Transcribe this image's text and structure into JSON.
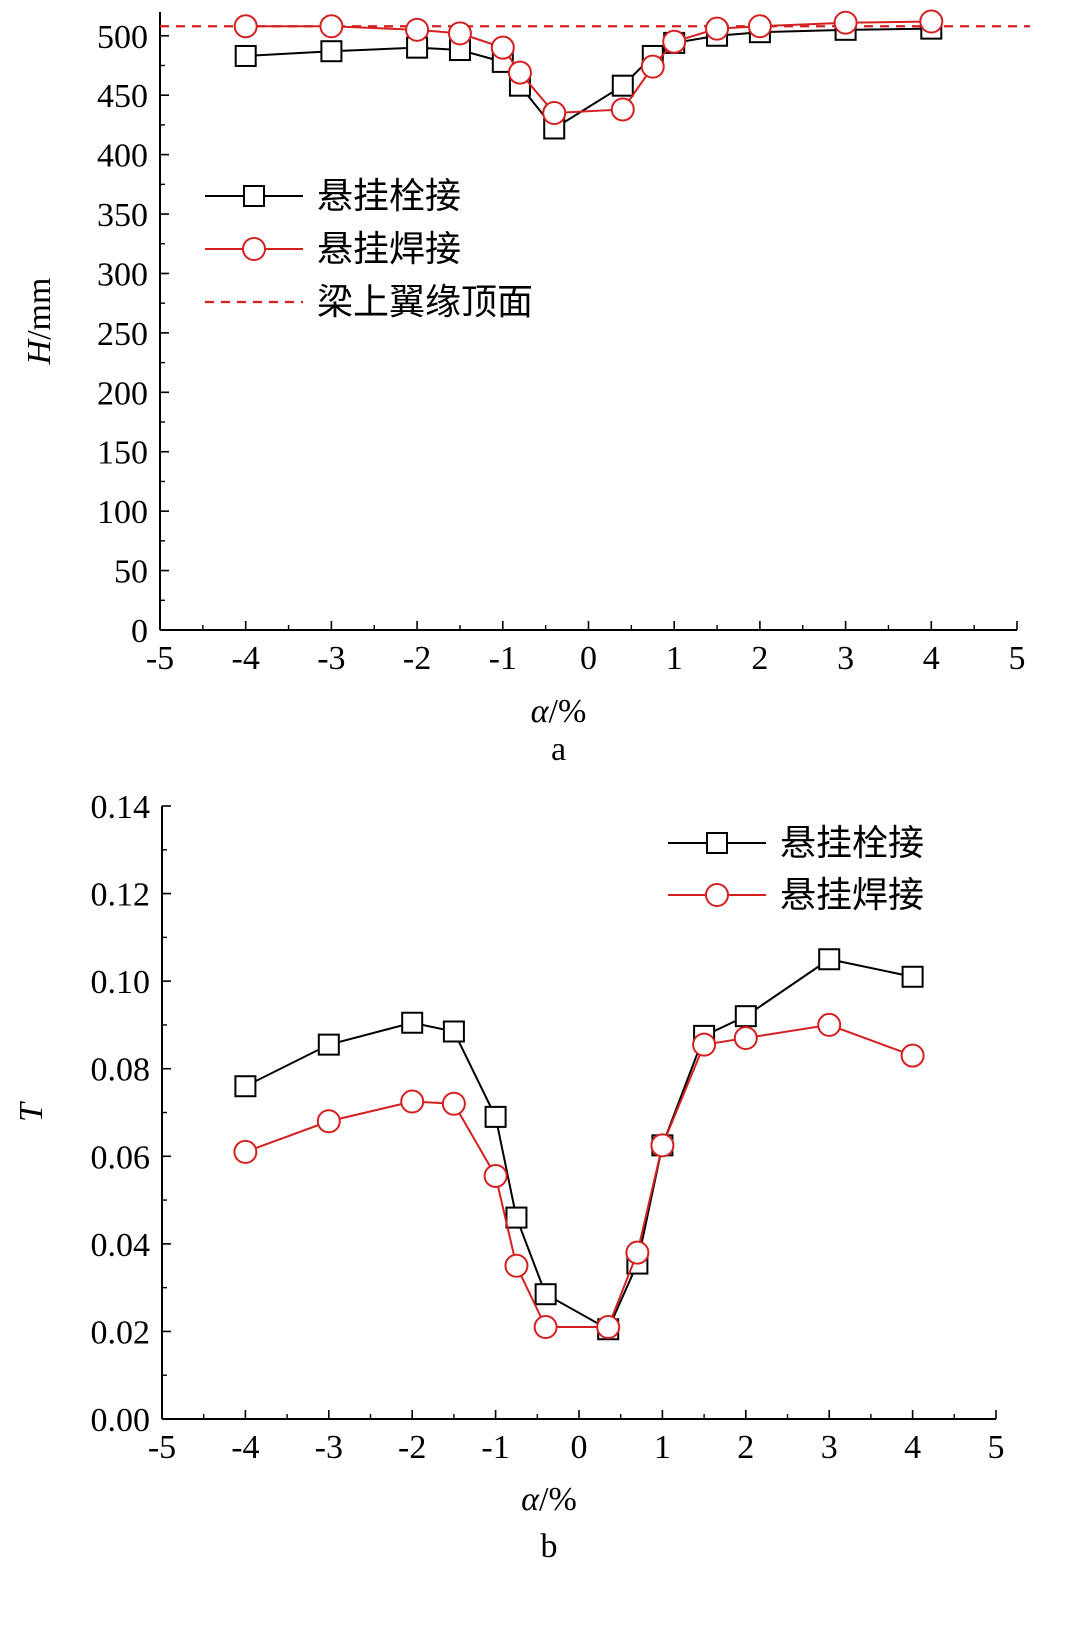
{
  "colors": {
    "bolted": "#000000",
    "welded": "#d42020",
    "reference": "#d42020"
  },
  "chart_data": [
    {
      "type": "line",
      "panel_label": "a",
      "xlabel_italic": "α",
      "xlabel_rest": "/%",
      "ylabel_italic": "H",
      "ylabel_rest": "/mm",
      "xlim": [
        -5,
        5
      ],
      "ylim": [
        0,
        520
      ],
      "xticks": [
        -5,
        -4,
        -3,
        -2,
        -1,
        0,
        1,
        2,
        3,
        4,
        5
      ],
      "xtick_labels": [
        "-5",
        "-4",
        "-3",
        "-2",
        "-1",
        "0",
        "1",
        "2",
        "3",
        "4",
        "5"
      ],
      "yticks": [
        0,
        50,
        100,
        150,
        200,
        250,
        300,
        350,
        400,
        450,
        500
      ],
      "ytick_labels": [
        "0",
        "50",
        "100",
        "150",
        "200",
        "250",
        "300",
        "350",
        "400",
        "450",
        "500"
      ],
      "grid": false,
      "legend_position": "upper-left",
      "series": [
        {
          "name": "悬挂栓接",
          "marker": "square",
          "color_key": "bolted",
          "x": [
            -4,
            -3,
            -2,
            -1.5,
            -1,
            -0.8,
            -0.4,
            0.4,
            0.75,
            1,
            1.5,
            2,
            3,
            4
          ],
          "y": [
            483,
            487,
            490,
            488,
            478,
            458,
            422,
            458,
            483,
            494,
            500,
            503,
            505,
            506
          ]
        },
        {
          "name": "悬挂焊接",
          "marker": "circle",
          "color_key": "welded",
          "x": [
            -4,
            -3,
            -2,
            -1.5,
            -1,
            -0.8,
            -0.4,
            0.4,
            0.75,
            1,
            1.5,
            2,
            3,
            4
          ],
          "y": [
            508,
            508,
            505,
            502,
            490,
            469,
            435,
            438,
            474,
            495,
            506,
            508,
            511,
            512
          ]
        }
      ],
      "reference_line": {
        "name": "梁上翼缘顶面",
        "y": 508,
        "style": "dashed",
        "color_key": "reference"
      }
    },
    {
      "type": "line",
      "panel_label": "b",
      "xlabel_italic": "α",
      "xlabel_rest": "/%",
      "ylabel_italic": "T",
      "ylabel_rest": "",
      "xlim": [
        -5,
        5
      ],
      "ylim": [
        0,
        0.14
      ],
      "xticks": [
        -5,
        -4,
        -3,
        -2,
        -1,
        0,
        1,
        2,
        3,
        4,
        5
      ],
      "xtick_labels": [
        "-5",
        "-4",
        "-3",
        "-2",
        "-1",
        "0",
        "1",
        "2",
        "3",
        "4",
        "5"
      ],
      "yticks": [
        0,
        0.02,
        0.04,
        0.06,
        0.08,
        0.1,
        0.12,
        0.14
      ],
      "ytick_labels": [
        "0.00",
        "0.02",
        "0.04",
        "0.06",
        "0.08",
        "0.10",
        "0.12",
        "0.14"
      ],
      "grid": false,
      "legend_position": "upper-right",
      "series": [
        {
          "name": "悬挂栓接",
          "marker": "square",
          "color_key": "bolted",
          "x": [
            -4,
            -3,
            -2,
            -1.5,
            -1,
            -0.75,
            -0.4,
            0.35,
            0.7,
            1,
            1.5,
            2,
            3,
            4
          ],
          "y": [
            0.076,
            0.0855,
            0.0905,
            0.0885,
            0.069,
            0.046,
            0.0285,
            0.0205,
            0.0355,
            0.0625,
            0.0875,
            0.092,
            0.105,
            0.101
          ]
        },
        {
          "name": "悬挂焊接",
          "marker": "circle",
          "color_key": "welded",
          "x": [
            -4,
            -3,
            -2,
            -1.5,
            -1,
            -0.75,
            -0.4,
            0.35,
            0.7,
            1,
            1.5,
            2,
            3,
            4
          ],
          "y": [
            0.061,
            0.068,
            0.0725,
            0.072,
            0.0555,
            0.035,
            0.021,
            0.021,
            0.038,
            0.0625,
            0.0855,
            0.087,
            0.09,
            0.083
          ]
        }
      ]
    }
  ]
}
